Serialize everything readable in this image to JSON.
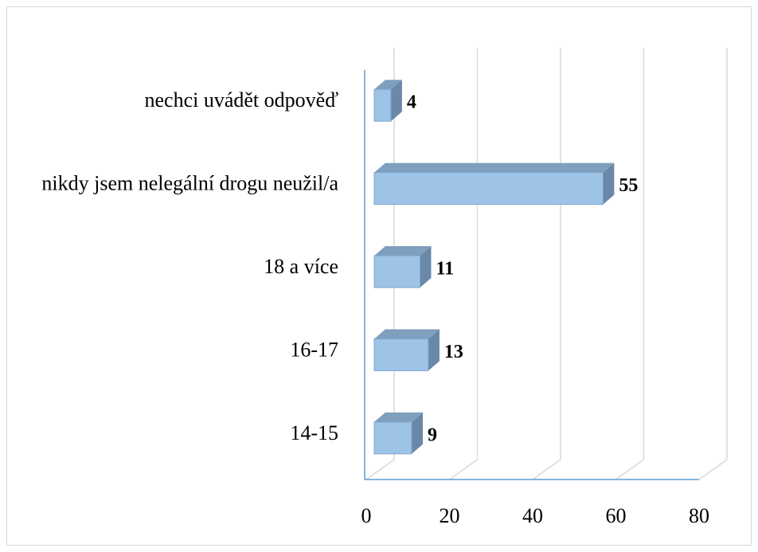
{
  "chart_data": {
    "type": "bar3d_horizontal",
    "categories": [
      "nechci uvádět odpověď",
      "nikdy jsem nelegální drogu neužil/a",
      "18 a více",
      "16-17",
      "14-15"
    ],
    "values": [
      4,
      55,
      11,
      13,
      9
    ],
    "color": "#9dc3e6",
    "xlim": [
      0,
      80
    ],
    "xticks": [
      0,
      20,
      40,
      60,
      80
    ],
    "grid": true
  }
}
